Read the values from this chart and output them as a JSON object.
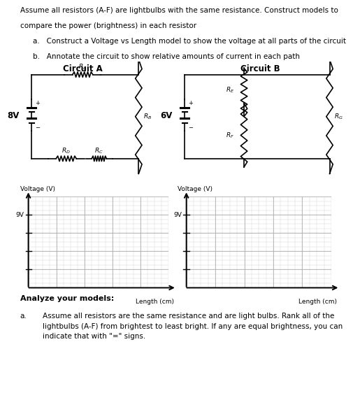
{
  "title_line1": "Assume all resistors (A-F) are lightbulbs with the same resistance. Construct models to",
  "title_line2": "compare the power (brightness) in each resistor",
  "bullet_a": "Construct a Voltage vs Length model to show the voltage at all parts of the circuit",
  "bullet_b": "Annotate the circuit to show relative amounts of current in each path",
  "circuit_a_title": "Circuit A",
  "circuit_b_title": "Circuit B",
  "circuit_a_voltage": "8V",
  "circuit_b_voltage": "6V",
  "graph_ylabel": "Voltage (V)",
  "graph_xlabel": "Length (cm)",
  "graph_ytick_label": "9V",
  "analyze_title": "Analyze your models:",
  "analyze_bullet": "a.",
  "analyze_text": "Assume all resistors are the same resistance and are light bulbs. Rank all of the\nlightbulbs (A-F) from brightest to least bright. If any are equal brightness, you can\nindicate that with \"=\" signs.",
  "bg_color": "#ffffff",
  "black": "#000000",
  "grid_minor": "#d8d8d8",
  "grid_major": "#b0b0b0"
}
